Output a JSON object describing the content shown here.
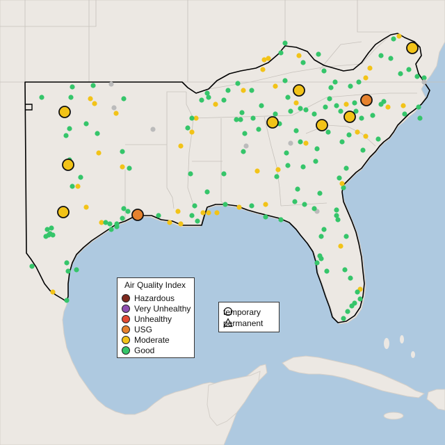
{
  "legend": {
    "title": "Air Quality Index",
    "categories": [
      {
        "label": "Hazardous",
        "color": "#7e2a1f"
      },
      {
        "label": "Very Unhealthy",
        "color": "#8e4fb0"
      },
      {
        "label": "Unhealthy",
        "color": "#e34a33"
      },
      {
        "label": "USG",
        "color": "#e6822e"
      },
      {
        "label": "Moderate",
        "color": "#f2c318"
      },
      {
        "label": "Good",
        "color": "#35c56a"
      }
    ]
  },
  "monitor_types": {
    "temporary": "temporary",
    "permanent": "permanent"
  },
  "colors": {
    "land": "#ece8e3",
    "water": "#aec9e0",
    "no_data": "#bbbbbb"
  }
}
